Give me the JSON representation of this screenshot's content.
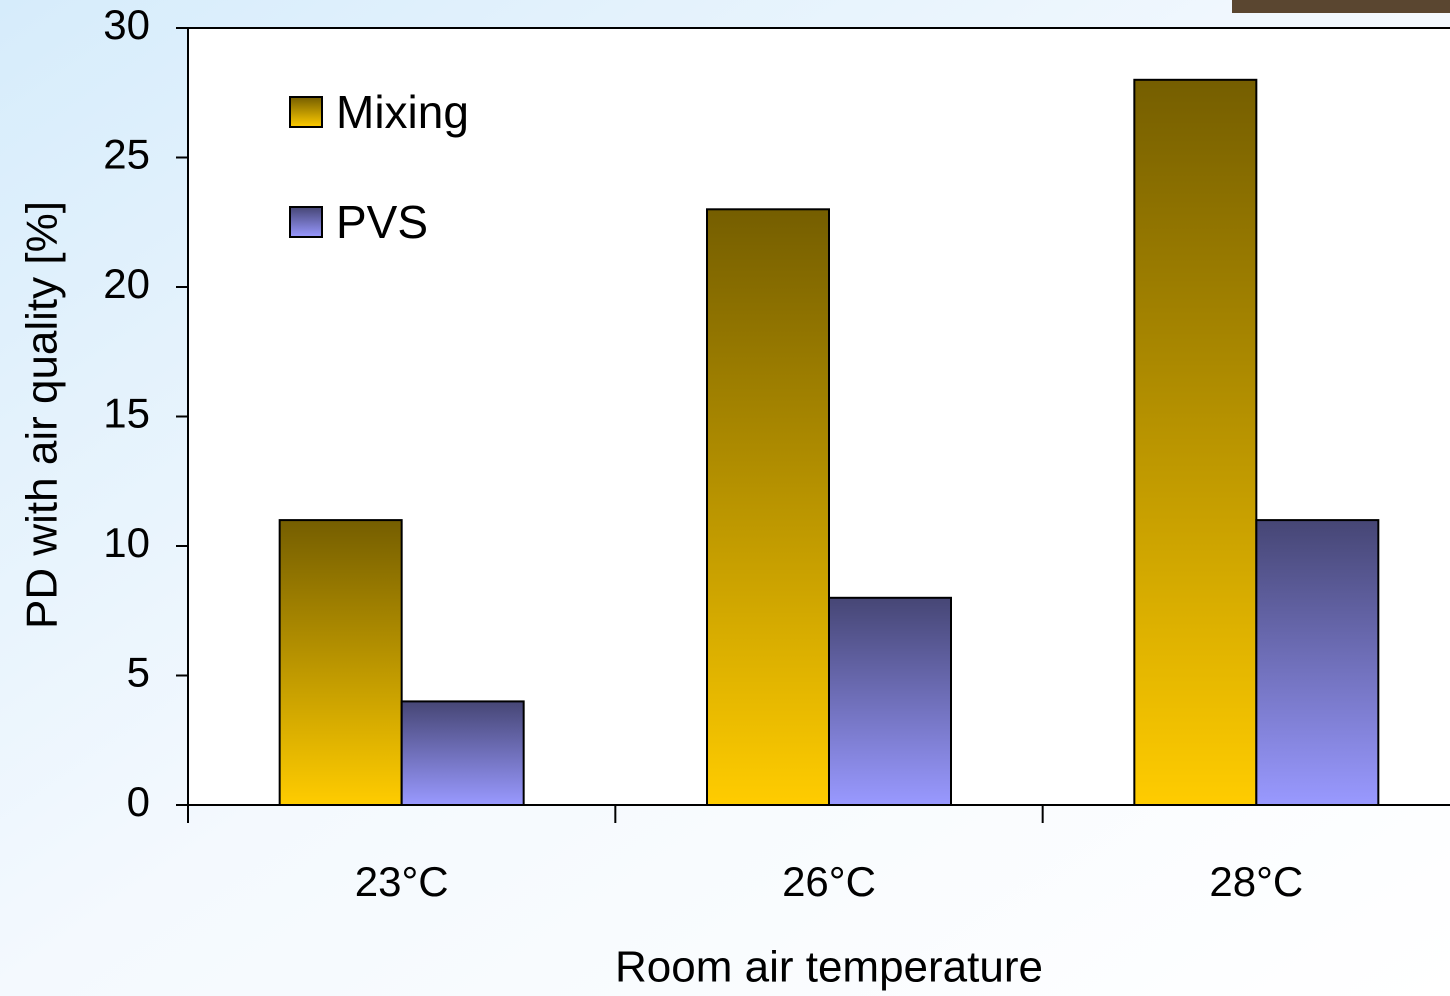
{
  "chart_data": {
    "type": "bar",
    "x_label": "Room air temperature",
    "y_label": "PD with air quality [%]",
    "categories": [
      "23°C",
      "26°C",
      "28°C"
    ],
    "series": [
      {
        "name": "Mixing",
        "color": "#ffcc00",
        "values": [
          11,
          23,
          28
        ]
      },
      {
        "name": "PVS",
        "color": "#9999ff",
        "values": [
          4,
          8,
          11
        ]
      }
    ],
    "ylim": [
      0,
      30
    ],
    "yticks": [
      0,
      5,
      10,
      15,
      20,
      25,
      30
    ],
    "legend": "top-left"
  }
}
